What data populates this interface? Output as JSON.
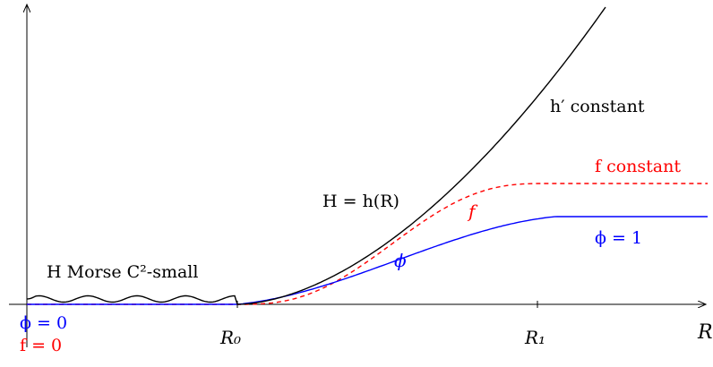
{
  "colors": {
    "axis": "#000000",
    "H": "#000000",
    "phi": "#0000ff",
    "f": "#ff0000"
  },
  "axes": {
    "x_label": "R",
    "tick_R0": "R₀",
    "tick_R1": "R₁"
  },
  "curves": {
    "H": {
      "name": "H",
      "style": "solid"
    },
    "phi": {
      "name": "ϕ",
      "style": "solid"
    },
    "f": {
      "name": "f",
      "style": "dashed"
    }
  },
  "annotations": {
    "morse": "H Morse C²-small",
    "H_equals": "H = h(R)",
    "h_prime": "h′ constant",
    "f_constant": "f constant",
    "f_label": "f",
    "phi_label": "ϕ",
    "phi_one": "ϕ = 1",
    "phi_zero": "ϕ = 0",
    "f_zero": "f = 0"
  }
}
